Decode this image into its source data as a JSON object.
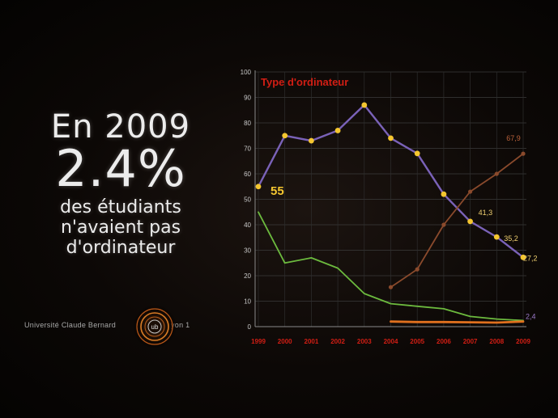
{
  "headline": {
    "year": "En 2009",
    "percent": "2.4%",
    "caption_lines": [
      "des étudiants",
      "n'avaient pas",
      "d'ordinateur"
    ]
  },
  "branding": {
    "name_left": "Université Claude Bernard",
    "name_right": "Lyon 1",
    "logo_text": "ub"
  },
  "colors": {
    "background": "#0a0705",
    "accent_red": "#d21e14",
    "series_purple": "#7a62b8",
    "series_brown": "#8a4a2c",
    "series_green": "#6cba3e",
    "series_orange": "#e0701e",
    "marker_gold": "#f4c630"
  },
  "chart_data": {
    "type": "line",
    "title": "Type d'ordinateur",
    "xlabel": "",
    "ylabel": "",
    "ylim": [
      0,
      100
    ],
    "y_ticks": [
      "0",
      "10",
      "20",
      "30",
      "40",
      "50",
      "60",
      "70",
      "80",
      "90",
      "100"
    ],
    "x": [
      "1999",
      "2000",
      "2001",
      "2002",
      "2003",
      "2004",
      "2005",
      "2006",
      "2007",
      "2008",
      "2009"
    ],
    "grid": true,
    "legend": "none",
    "series": [
      {
        "color": "#7a62b8",
        "marker": "#f4c630",
        "values": [
          55,
          75,
          73,
          77,
          87,
          74,
          68,
          52,
          41.3,
          35.2,
          27.2
        ]
      },
      {
        "color": "#8a4a2c",
        "marker": "#8a4a2c",
        "values": [
          null,
          null,
          null,
          null,
          null,
          15.5,
          22.5,
          40,
          53,
          60,
          67.9
        ]
      },
      {
        "color": "#6cba3e",
        "marker": null,
        "values": [
          45,
          25,
          27,
          23,
          13,
          9,
          8,
          7,
          4,
          3,
          2.4
        ]
      },
      {
        "color": "#e0701e",
        "marker": null,
        "values": [
          null,
          null,
          null,
          null,
          null,
          2,
          1.8,
          1.8,
          1.7,
          1.6,
          2
        ]
      }
    ],
    "annotations": [
      {
        "label": "55",
        "x": "1999",
        "y": 55
      },
      {
        "label": "41,3",
        "x": "2007",
        "y": 41.3
      },
      {
        "label": "35,2",
        "x": "2008",
        "y": 35.2
      },
      {
        "label": "27,2",
        "x": "2009",
        "y": 27.2
      },
      {
        "label": "67,9",
        "x": "2009",
        "y": 67.9
      },
      {
        "label": "2,4",
        "x": "2009",
        "y": 2.4
      }
    ]
  }
}
